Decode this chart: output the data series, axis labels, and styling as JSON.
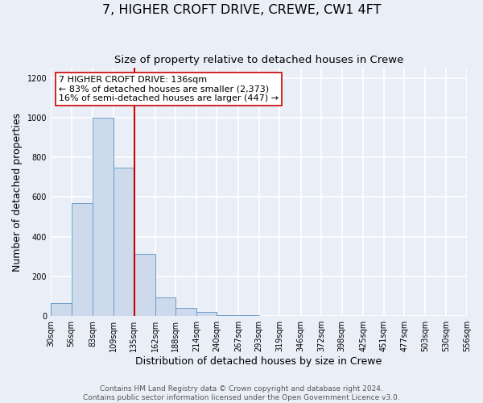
{
  "title": "7, HIGHER CROFT DRIVE, CREWE, CW1 4FT",
  "subtitle": "Size of property relative to detached houses in Crewe",
  "xlabel": "Distribution of detached houses by size in Crewe",
  "ylabel": "Number of detached properties",
  "bin_edges": [
    30,
    56,
    83,
    109,
    135,
    162,
    188,
    214,
    240,
    267,
    293,
    319,
    346,
    372,
    398,
    425,
    451,
    477,
    503,
    530,
    556
  ],
  "counts": [
    65,
    570,
    1000,
    750,
    315,
    95,
    40,
    20,
    5,
    5,
    0,
    0,
    0,
    0,
    0,
    0,
    0,
    0,
    0,
    0
  ],
  "bar_color": "#cddaec",
  "bar_edge_color": "#6b9dc8",
  "property_line_x": 136,
  "property_line_color": "#cc0000",
  "annotation_line1": "7 HIGHER CROFT DRIVE: 136sqm",
  "annotation_line2": "← 83% of detached houses are smaller (2,373)",
  "annotation_line3": "16% of semi-detached houses are larger (447) →",
  "annotation_box_color": "white",
  "annotation_box_edge_color": "#cc0000",
  "ylim": [
    0,
    1250
  ],
  "yticks": [
    0,
    200,
    400,
    600,
    800,
    1000,
    1200
  ],
  "footer_line1": "Contains HM Land Registry data © Crown copyright and database right 2024.",
  "footer_line2": "Contains public sector information licensed under the Open Government Licence v3.0.",
  "background_color": "#eaeff7",
  "plot_background_color": "#eaeff7",
  "grid_color": "#ffffff",
  "title_fontsize": 11.5,
  "subtitle_fontsize": 9.5,
  "label_fontsize": 9,
  "tick_fontsize": 7,
  "footer_fontsize": 6.5,
  "annotation_fontsize": 8
}
